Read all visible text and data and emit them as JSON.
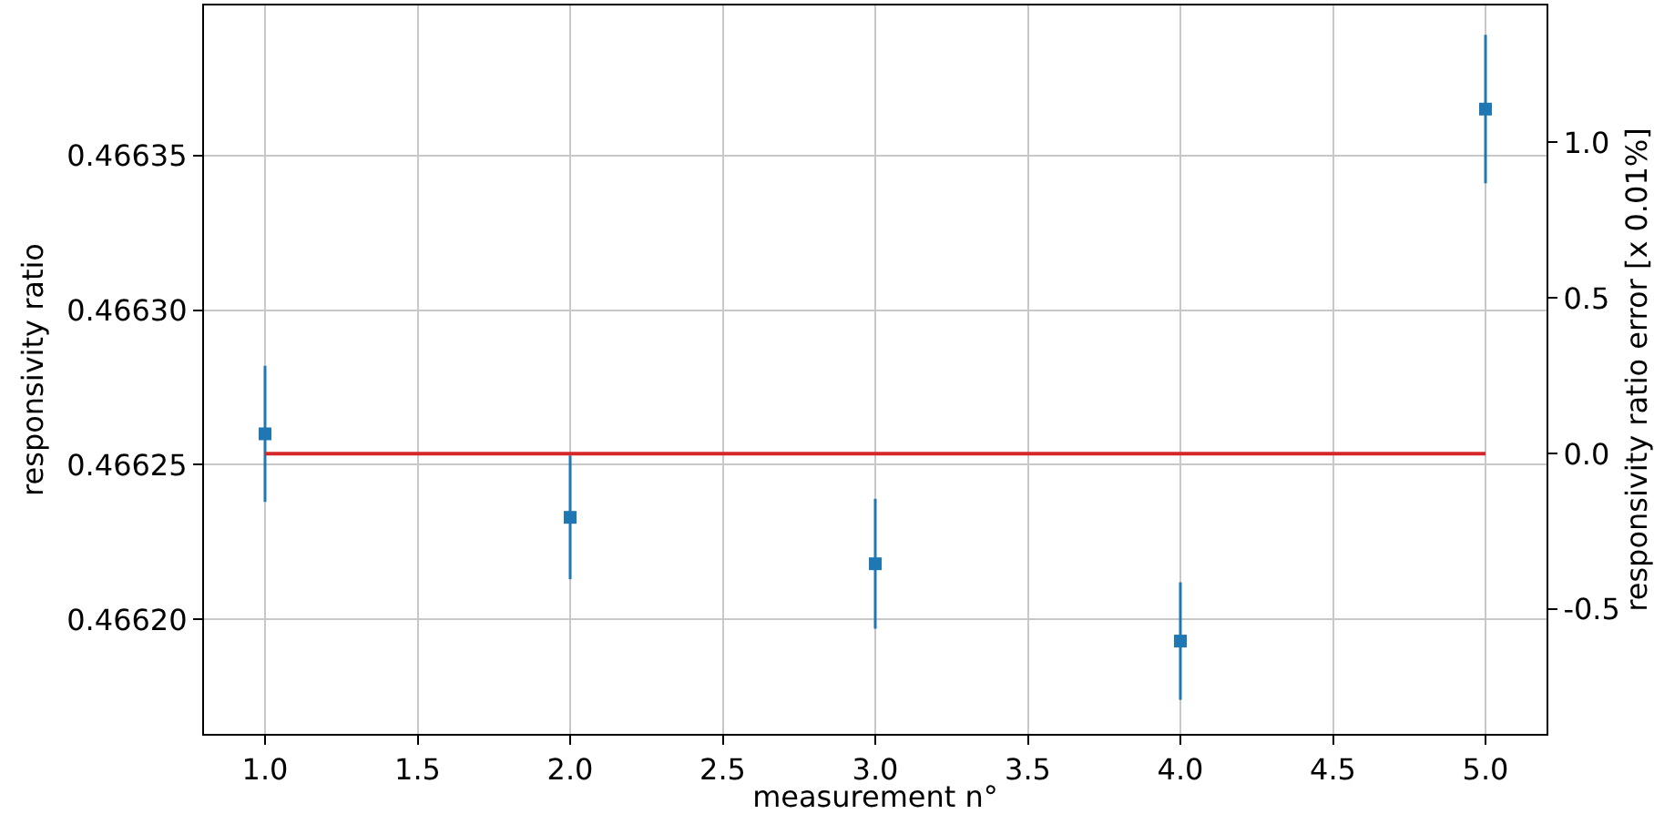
{
  "chart_data": {
    "type": "scatter",
    "xlabel": "measurement n°",
    "ylabel": "responsivity ratio",
    "y2label": "responsivity ratio error [x 0.01%]",
    "series": [
      {
        "color": "#1f77b4",
        "marker": "square",
        "x": [
          1,
          2,
          3,
          4,
          5
        ],
        "values": [
          0.46626,
          0.466233,
          0.466218,
          0.466193,
          0.466365
        ],
        "errors": [
          2.2e-05,
          2e-05,
          2.1e-05,
          1.9e-05,
          2.4e-05
        ]
      },
      {
        "type": "line",
        "axis": "y2",
        "color": "#d62728",
        "marker": "none",
        "line_style": "solid",
        "x": [
          1,
          5
        ],
        "values": [
          0,
          0
        ]
      }
    ],
    "xlim": [
      0.8,
      5.2
    ],
    "xticks": [
      {
        "value": 1,
        "label": "1.0"
      },
      {
        "value": 1.5,
        "label": "1.5"
      },
      {
        "value": 2,
        "label": "2.0"
      },
      {
        "value": 2.5,
        "label": "2.5"
      },
      {
        "value": 3,
        "label": "3.0"
      },
      {
        "value": 3.5,
        "label": "3.5"
      },
      {
        "value": 4,
        "label": "4.0"
      },
      {
        "value": 4.5,
        "label": "4.5"
      },
      {
        "value": 5,
        "label": "5.0"
      }
    ],
    "ylim": [
      0.466163,
      0.4663985
    ],
    "yticks": [
      {
        "value": 0.4662,
        "label": "0.46620"
      },
      0.46625,
      {
        "value": 0.4663,
        "label": "0.46630"
      },
      0.46635
    ],
    "y2lim": [
      -0.9,
      1.44
    ],
    "y2ticks": [
      {
        "value": -0.5,
        "label": "-0.5"
      },
      {
        "value": 0,
        "label": "0.0"
      },
      {
        "value": 0.5,
        "label": "0.5"
      },
      {
        "value": 1,
        "label": "1.0"
      }
    ],
    "grid": true
  }
}
